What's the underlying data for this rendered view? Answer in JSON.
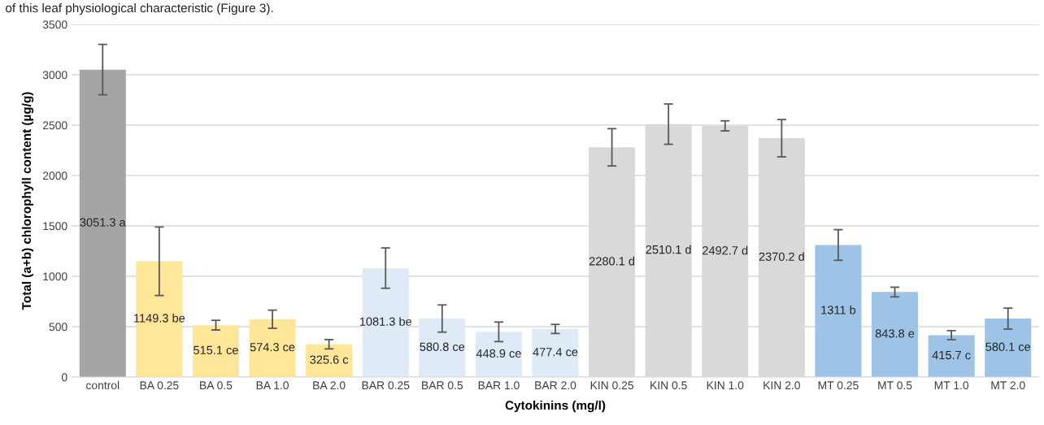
{
  "chart_data": {
    "type": "bar",
    "annotations": [
      "of this leaf physiological characteristic (Figure 3)."
    ],
    "xlabel": "Cytokinins (mg/l)",
    "ylabel": "Total (a+b) chlorophyll content (µg/g)",
    "categories": [
      "control",
      "BA 0.25",
      "BA 0.5",
      "BA 1.0",
      "BA 2.0",
      "BAR 0.25",
      "BAR 0.5",
      "BAR 1.0",
      "BAR 2.0",
      "KIN 0.25",
      "KIN 0.5",
      "KIN 1.0",
      "KIN 2.0",
      "MT 0.25",
      "MT 0.5",
      "MT 1.0",
      "MT 2.0"
    ],
    "values": [
      3051.3,
      1149.3,
      515.1,
      574.3,
      325.6,
      1081.3,
      580.8,
      448.9,
      477.4,
      2280.1,
      2510.1,
      2492.7,
      2370.2,
      1311,
      843.8,
      415.7,
      580.1
    ],
    "value_labels": [
      "3051.3 a",
      "1149.3 be",
      "515.1 ce",
      "574.3 ce",
      "325.6 c",
      "1081.3 be",
      "580.8 ce",
      "448.9 ce",
      "477.4 ce",
      "2280.1 d",
      "2510.1 d",
      "2492.7 d",
      "2370.2 d",
      "1311 b",
      "843.8 e",
      "415.7 c",
      "580.1 ce"
    ],
    "errors": [
      250,
      340,
      48,
      90,
      46,
      200,
      135,
      97,
      45,
      185,
      200,
      50,
      185,
      152,
      48,
      45,
      104
    ],
    "colors": [
      "#a5a5a5",
      "#ffe699",
      "#ffe699",
      "#ffe699",
      "#ffe699",
      "#deebf7",
      "#deebf7",
      "#deebf7",
      "#deebf7",
      "#d9d9d9",
      "#d9d9d9",
      "#d9d9d9",
      "#d9d9d9",
      "#9dc3e6",
      "#9dc3e6",
      "#9dc3e6",
      "#9dc3e6"
    ],
    "ylim": [
      0,
      3500
    ],
    "yticks": [
      0,
      500,
      1000,
      1500,
      2000,
      2500,
      3000,
      3500
    ],
    "grid": "y"
  }
}
